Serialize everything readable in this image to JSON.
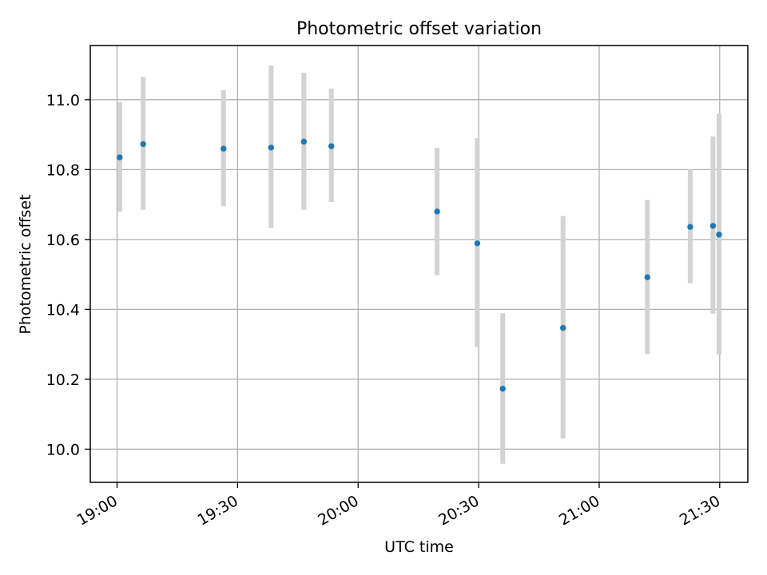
{
  "chart_data": {
    "type": "scatter",
    "title": "Photometric offset variation",
    "xlabel": "UTC time",
    "ylabel": "Photometric offset",
    "x_ticks": [
      "19:00",
      "19:30",
      "20:00",
      "20:30",
      "21:00",
      "21:30"
    ],
    "y_ticks": [
      "10.0",
      "10.2",
      "10.4",
      "10.6",
      "10.8",
      "11.0"
    ],
    "xlim": [
      "18:53:20",
      "21:37:00"
    ],
    "ylim": [
      9.905,
      11.155
    ],
    "grid": true,
    "legend": false,
    "series": [
      {
        "x": [
          "19:00:40",
          "19:06:30",
          "19:26:30",
          "19:38:20",
          "19:46:30",
          "19:53:20",
          "20:19:40",
          "20:29:40",
          "20:36:00",
          "20:51:00",
          "21:12:00",
          "21:22:40",
          "21:28:20",
          "21:29:50"
        ],
        "y": [
          10.835,
          10.873,
          10.86,
          10.863,
          10.88,
          10.867,
          10.68,
          10.589,
          10.173,
          10.347,
          10.492,
          10.636,
          10.639,
          10.614
        ],
        "error_low": [
          10.68,
          10.685,
          10.695,
          10.633,
          10.685,
          10.707,
          10.498,
          10.292,
          9.958,
          10.03,
          10.272,
          10.475,
          10.388,
          10.27
        ],
        "error_high": [
          10.993,
          11.065,
          11.027,
          11.098,
          11.077,
          11.032,
          10.862,
          10.89,
          10.389,
          10.667,
          10.713,
          10.8,
          10.895,
          10.96
        ]
      }
    ],
    "colors": {
      "marker": "#1f77b4",
      "errorbar": "#d3d3d3",
      "grid": "#b0b0b0",
      "axes": "#000000"
    }
  }
}
